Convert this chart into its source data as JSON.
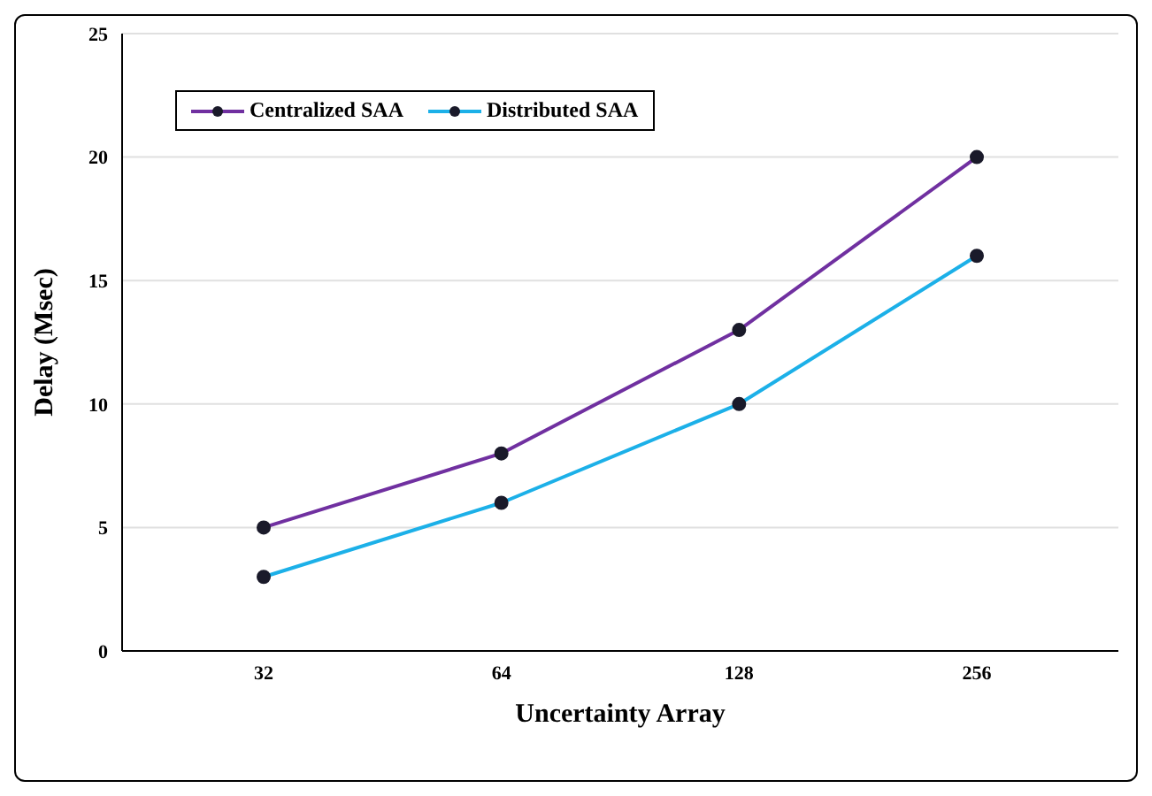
{
  "chart_data": {
    "type": "line",
    "xlabel": "Uncertainty Array",
    "ylabel": "Delay (Msec)",
    "categories": [
      "32",
      "64",
      "128",
      "256"
    ],
    "series": [
      {
        "name": "Centralized SAA",
        "color": "#7030a0",
        "values": [
          5,
          8,
          13,
          20
        ]
      },
      {
        "name": "Distributed SAA",
        "color": "#1cb0e8",
        "values": [
          3,
          6,
          10,
          16
        ]
      }
    ],
    "ylim": [
      0,
      25
    ],
    "yticks": [
      0,
      5,
      10,
      15,
      20,
      25
    ],
    "grid": "y",
    "legend": "top left",
    "marker": "circle",
    "line_style": "solid"
  }
}
